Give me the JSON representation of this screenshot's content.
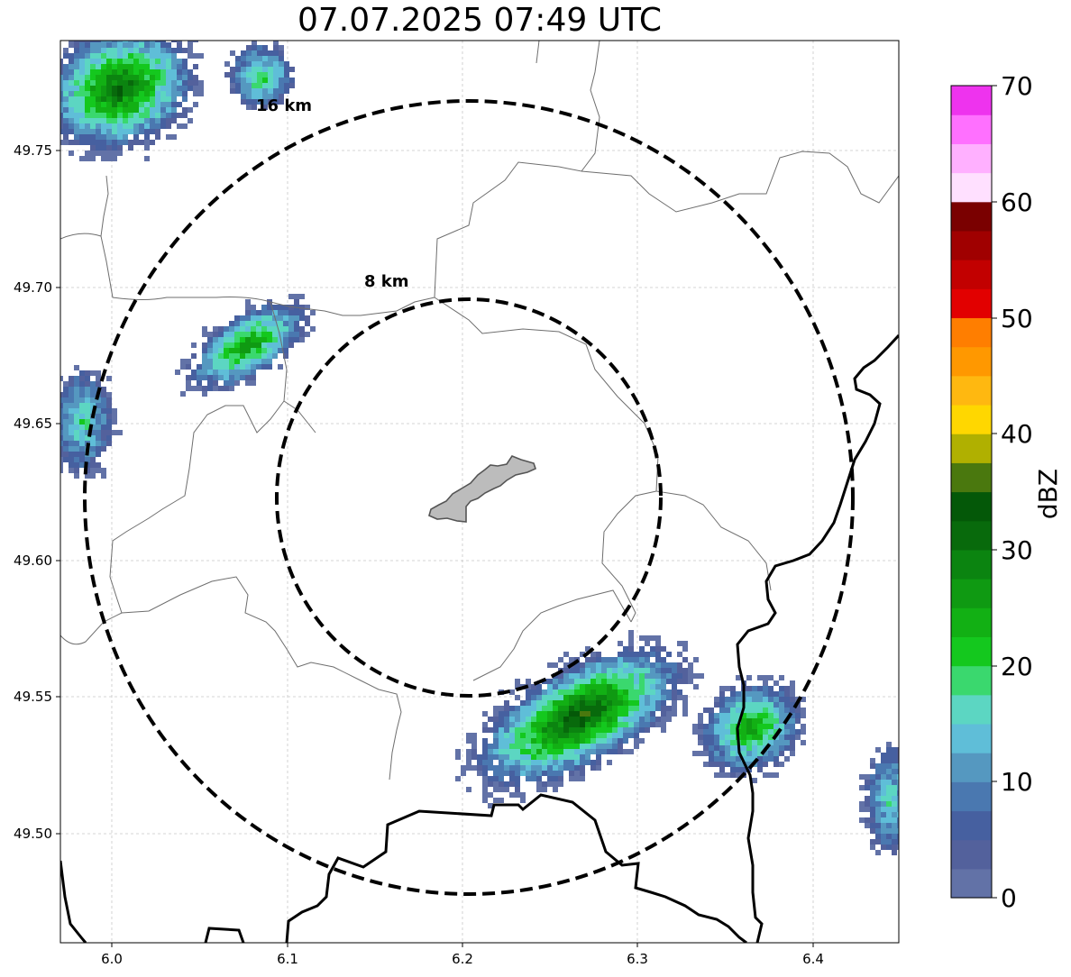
{
  "title": "07.07.2025 07:49 UTC",
  "map": {
    "lon_range": [
      5.97,
      6.45
    ],
    "lat_range": [
      49.46,
      49.79
    ],
    "x_ticks": [
      "6.0",
      "6.1",
      "6.2",
      "6.3",
      "6.4"
    ],
    "y_ticks": [
      "49.50",
      "49.55",
      "49.60",
      "49.65",
      "49.70",
      "49.75"
    ],
    "grid": true,
    "range_rings": [
      {
        "label": "8 km",
        "radius_km": 8
      },
      {
        "label": "16 km",
        "radius_km": 16
      }
    ],
    "radar_center": {
      "lon": 6.204,
      "lat": 49.623
    },
    "city_area": "gray polygon at center",
    "echoes": [
      {
        "name": "northwest cell",
        "max_dbz": 30
      },
      {
        "name": "west-northwest cell",
        "max_dbz": 25
      },
      {
        "name": "west edge cell",
        "max_dbz": 15
      },
      {
        "name": "north cell",
        "max_dbz": 18
      },
      {
        "name": "south line",
        "max_dbz": 33
      },
      {
        "name": "southeast cell",
        "max_dbz": 24
      },
      {
        "name": "east edge cell",
        "max_dbz": 15
      }
    ]
  },
  "colorbar": {
    "label": "dBZ",
    "ticks": [
      "0",
      "10",
      "20",
      "30",
      "40",
      "50",
      "60",
      "70"
    ],
    "min": 0,
    "max": 70,
    "step": 2.5,
    "colors": [
      "#6272a7",
      "#53619c",
      "#4660a0",
      "#4a78b0",
      "#5598c0",
      "#5fbed8",
      "#5cd6c2",
      "#3ad86e",
      "#14c81e",
      "#12b014",
      "#0f9a12",
      "#0b8410",
      "#086a0c",
      "#045808",
      "#4a780e",
      "#b0b000",
      "#ffd700",
      "#ffb810",
      "#ff9800",
      "#ff7e00",
      "#e20000",
      "#c20000",
      "#a00000",
      "#7a0000",
      "#ffe0ff",
      "#ffb0ff",
      "#ff70ff",
      "#ee33ee"
    ]
  }
}
